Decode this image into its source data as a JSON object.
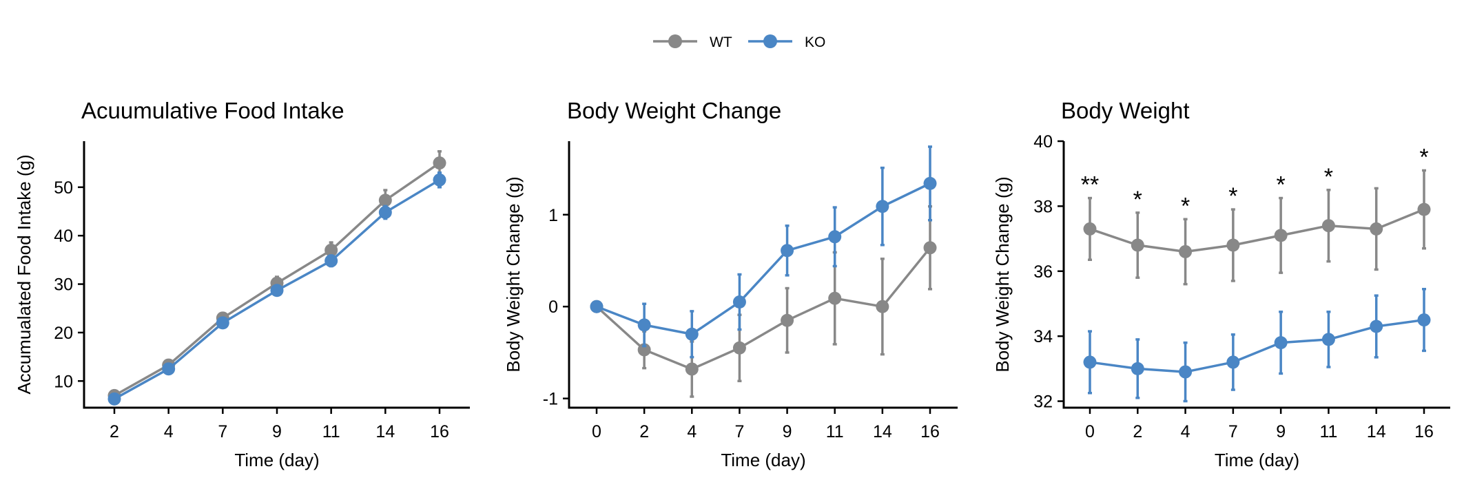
{
  "legend": {
    "entries": [
      {
        "label": "WT",
        "color": "#888888"
      },
      {
        "label": "KO",
        "color": "#4a86c5"
      }
    ],
    "placement": "top-center"
  },
  "chart_data": [
    {
      "type": "line",
      "title": "Acuumulative Food Intake",
      "xlabel": "Time (day)",
      "ylabel": "Accumualated Food Intake (g)",
      "categories": [
        "2",
        "4",
        "7",
        "9",
        "11",
        "14",
        "16"
      ],
      "ylim": [
        4.5,
        59.5
      ],
      "yticks": [
        10,
        20,
        30,
        40,
        50
      ],
      "yticklabels": [
        "10",
        "20",
        "30",
        "40",
        "50"
      ],
      "grid": false,
      "series": [
        {
          "name": "WT",
          "color": "#888888",
          "values": [
            7.0,
            13.3,
            23.0,
            30.2,
            37.0,
            47.3,
            55.0
          ],
          "error": [
            0.6,
            0.9,
            1.0,
            1.3,
            1.6,
            2.1,
            2.4
          ]
        },
        {
          "name": "KO",
          "color": "#4a86c5",
          "values": [
            6.3,
            12.5,
            22.0,
            28.7,
            34.8,
            44.8,
            51.5
          ],
          "error": [
            0.5,
            0.7,
            0.8,
            0.9,
            1.1,
            1.3,
            1.5
          ]
        }
      ],
      "annotations": []
    },
    {
      "type": "line",
      "title": "Body Weight Change",
      "xlabel": "Time (day)",
      "ylabel": "Body Weight Change (g)",
      "categories": [
        "0",
        "2",
        "4",
        "7",
        "9",
        "11",
        "14",
        "16"
      ],
      "ylim": [
        -1.1,
        1.8
      ],
      "yticks": [
        -1,
        0,
        1
      ],
      "yticklabels": [
        "-1",
        "0",
        "1"
      ],
      "grid": false,
      "series": [
        {
          "name": "WT",
          "color": "#888888",
          "values": [
            0,
            -0.47,
            -0.68,
            -0.45,
            -0.15,
            0.09,
            0.0,
            0.64
          ],
          "error": [
            0,
            0.2,
            0.3,
            0.36,
            0.35,
            0.5,
            0.52,
            0.45
          ]
        },
        {
          "name": "KO",
          "color": "#4a86c5",
          "values": [
            0,
            -0.2,
            -0.3,
            0.05,
            0.61,
            0.76,
            1.09,
            1.34
          ],
          "error": [
            0,
            0.23,
            0.25,
            0.3,
            0.27,
            0.32,
            0.42,
            0.4
          ]
        }
      ],
      "annotations": []
    },
    {
      "type": "line",
      "title": "Body Weight",
      "xlabel": "Time (day)",
      "ylabel": "Body Weight Change (g)",
      "categories": [
        "0",
        "2",
        "4",
        "7",
        "9",
        "11",
        "14",
        "16"
      ],
      "ylim": [
        31.8,
        40.0
      ],
      "yticks": [
        32,
        34,
        36,
        38,
        40
      ],
      "yticklabels": [
        "32",
        "34",
        "36",
        "38",
        "40"
      ],
      "grid": false,
      "series": [
        {
          "name": "WT",
          "color": "#888888",
          "values": [
            37.3,
            36.8,
            36.6,
            36.8,
            37.1,
            37.4,
            37.3,
            37.9
          ],
          "error": [
            0.95,
            1.0,
            1.0,
            1.1,
            1.15,
            1.1,
            1.25,
            1.2
          ]
        },
        {
          "name": "KO",
          "color": "#4a86c5",
          "values": [
            33.2,
            33.0,
            32.9,
            33.2,
            33.8,
            33.9,
            34.3,
            34.5
          ],
          "error": [
            0.95,
            0.9,
            0.9,
            0.85,
            0.95,
            0.85,
            0.95,
            0.95
          ]
        }
      ],
      "annotations": [
        {
          "category": "0",
          "text": "**"
        },
        {
          "category": "2",
          "text": "*"
        },
        {
          "category": "4",
          "text": "*"
        },
        {
          "category": "7",
          "text": "*"
        },
        {
          "category": "9",
          "text": "*"
        },
        {
          "category": "11",
          "text": "*"
        },
        {
          "category": "16",
          "text": "*"
        }
      ]
    }
  ]
}
